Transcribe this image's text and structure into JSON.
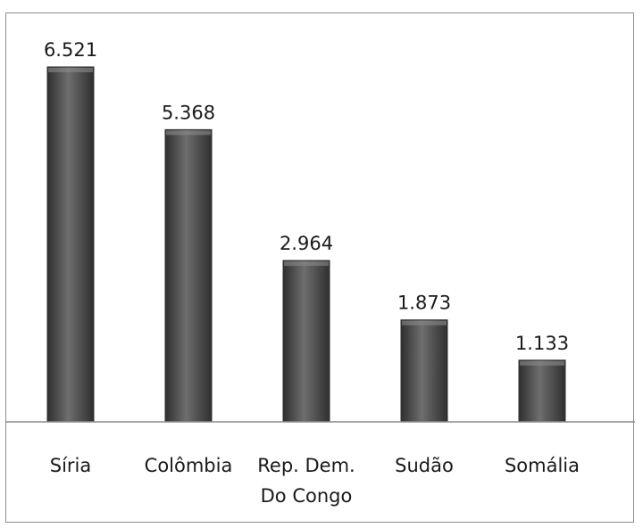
{
  "chart_data": {
    "type": "bar",
    "categories": [
      "Síria",
      "Colômbia",
      "Rep. Dem. Do Congo",
      "Sudão",
      "Somália"
    ],
    "category_lines": [
      [
        "Síria"
      ],
      [
        "Colômbia"
      ],
      [
        "Rep. Dem.",
        "Do Congo"
      ],
      [
        "Sudão"
      ],
      [
        "Somália"
      ]
    ],
    "values": [
      6.521,
      5.368,
      2.964,
      1.873,
      1.133
    ],
    "value_labels": [
      "6.521",
      "5.368",
      "2.964",
      "1.873",
      "1.133"
    ],
    "title": "",
    "xlabel": "",
    "ylabel": "",
    "ylim": [
      0,
      6.521
    ],
    "grid": false,
    "legend": "none",
    "colors": {
      "bar": "#555555",
      "bar_dark": "#2f2f2f",
      "bar_light": "#6e6e6e",
      "axis": "#8c8c8c",
      "frame": "#8c8c8c"
    }
  }
}
